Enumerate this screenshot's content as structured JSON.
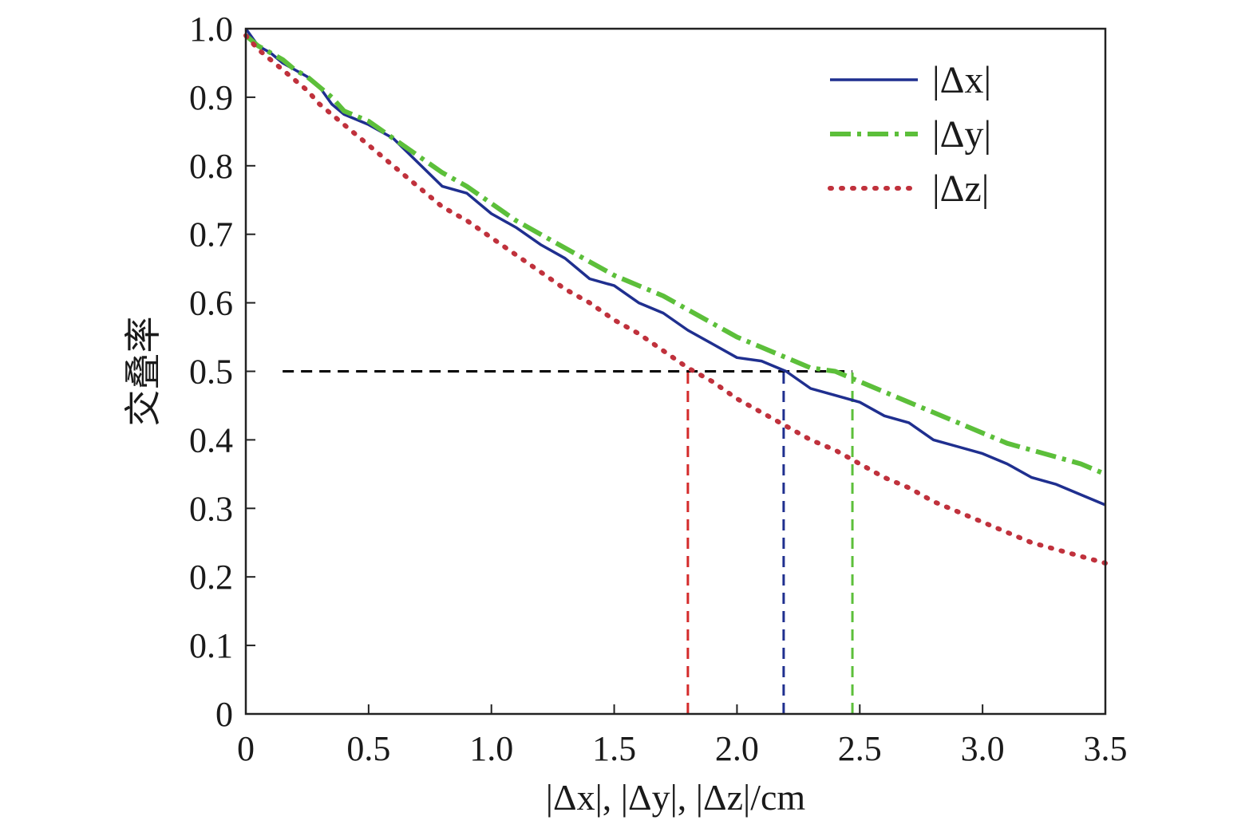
{
  "chart_data": {
    "type": "line",
    "xlabel": "|Δx|, |Δy|, |Δz|/cm",
    "ylabel": "交叠率",
    "xlim": [
      0,
      3.5
    ],
    "ylim": [
      0,
      1.0
    ],
    "x_ticks": [
      0,
      0.5,
      1.0,
      1.5,
      2.0,
      2.5,
      3.0,
      3.5
    ],
    "x_tick_labels": [
      "0",
      "0.5",
      "1.0",
      "1.5",
      "2.0",
      "2.5",
      "3.0",
      "3.5"
    ],
    "y_ticks": [
      0,
      0.1,
      0.2,
      0.3,
      0.4,
      0.5,
      0.6,
      0.7,
      0.8,
      0.9,
      1.0
    ],
    "y_tick_labels": [
      "0",
      "0.1",
      "0.2",
      "0.3",
      "0.4",
      "0.5",
      "0.6",
      "0.7",
      "0.8",
      "0.9",
      "1.0"
    ],
    "grid": false,
    "legend_position": "top-right",
    "series": [
      {
        "name": "|Δx|",
        "color": "#1f2f8f",
        "style": "solid",
        "x": [
          0,
          0.05,
          0.1,
          0.15,
          0.2,
          0.25,
          0.3,
          0.35,
          0.4,
          0.5,
          0.6,
          0.7,
          0.8,
          0.9,
          1.0,
          1.1,
          1.2,
          1.3,
          1.4,
          1.5,
          1.6,
          1.7,
          1.8,
          1.9,
          2.0,
          2.1,
          2.2,
          2.3,
          2.4,
          2.5,
          2.6,
          2.7,
          2.8,
          2.9,
          3.0,
          3.1,
          3.2,
          3.3,
          3.4,
          3.5
        ],
        "y": [
          1.0,
          0.975,
          0.965,
          0.95,
          0.94,
          0.93,
          0.915,
          0.89,
          0.875,
          0.86,
          0.84,
          0.805,
          0.77,
          0.76,
          0.73,
          0.71,
          0.685,
          0.665,
          0.635,
          0.625,
          0.6,
          0.585,
          0.56,
          0.54,
          0.52,
          0.515,
          0.5,
          0.475,
          0.465,
          0.455,
          0.435,
          0.425,
          0.4,
          0.39,
          0.38,
          0.365,
          0.345,
          0.335,
          0.32,
          0.305
        ]
      },
      {
        "name": "|Δy|",
        "color": "#5cbf3a",
        "style": "dashdot",
        "x": [
          0,
          0.05,
          0.1,
          0.15,
          0.2,
          0.25,
          0.3,
          0.35,
          0.4,
          0.5,
          0.6,
          0.7,
          0.8,
          0.9,
          1.0,
          1.1,
          1.2,
          1.3,
          1.4,
          1.5,
          1.6,
          1.7,
          1.8,
          1.9,
          2.0,
          2.1,
          2.2,
          2.3,
          2.4,
          2.5,
          2.6,
          2.7,
          2.8,
          2.9,
          3.0,
          3.1,
          3.2,
          3.3,
          3.4,
          3.5
        ],
        "y": [
          0.99,
          0.975,
          0.965,
          0.955,
          0.94,
          0.93,
          0.915,
          0.9,
          0.88,
          0.865,
          0.84,
          0.815,
          0.79,
          0.77,
          0.745,
          0.72,
          0.7,
          0.68,
          0.66,
          0.64,
          0.625,
          0.61,
          0.59,
          0.57,
          0.55,
          0.535,
          0.52,
          0.505,
          0.5,
          0.485,
          0.47,
          0.455,
          0.44,
          0.425,
          0.41,
          0.395,
          0.385,
          0.375,
          0.365,
          0.35
        ]
      },
      {
        "name": "|Δz|",
        "color": "#c0313c",
        "style": "dotted",
        "x": [
          0,
          0.05,
          0.1,
          0.15,
          0.2,
          0.25,
          0.3,
          0.4,
          0.5,
          0.6,
          0.7,
          0.8,
          0.9,
          1.0,
          1.1,
          1.2,
          1.3,
          1.4,
          1.5,
          1.6,
          1.7,
          1.8,
          1.9,
          2.0,
          2.1,
          2.2,
          2.3,
          2.4,
          2.5,
          2.6,
          2.7,
          2.8,
          2.9,
          3.0,
          3.1,
          3.2,
          3.3,
          3.4,
          3.5
        ],
        "y": [
          0.99,
          0.97,
          0.955,
          0.94,
          0.925,
          0.91,
          0.89,
          0.86,
          0.83,
          0.8,
          0.77,
          0.74,
          0.72,
          0.695,
          0.67,
          0.645,
          0.62,
          0.6,
          0.575,
          0.555,
          0.53,
          0.505,
          0.485,
          0.46,
          0.44,
          0.42,
          0.4,
          0.385,
          0.365,
          0.345,
          0.33,
          0.31,
          0.295,
          0.28,
          0.265,
          0.25,
          0.24,
          0.23,
          0.22
        ]
      }
    ],
    "annotations": [
      {
        "type": "hline",
        "y": 0.5,
        "x_from": 0.15,
        "x_to": 2.47,
        "color": "#000000",
        "style": "dashed"
      },
      {
        "type": "vline",
        "x": 1.8,
        "y_from": 0,
        "y_to": 0.5,
        "color": "#d42a2a",
        "style": "dashed"
      },
      {
        "type": "vline",
        "x": 2.19,
        "y_from": 0,
        "y_to": 0.5,
        "color": "#1f2f8f",
        "style": "dashed"
      },
      {
        "type": "vline",
        "x": 2.47,
        "y_from": 0,
        "y_to": 0.5,
        "color": "#5cbf3a",
        "style": "dashed"
      }
    ]
  }
}
